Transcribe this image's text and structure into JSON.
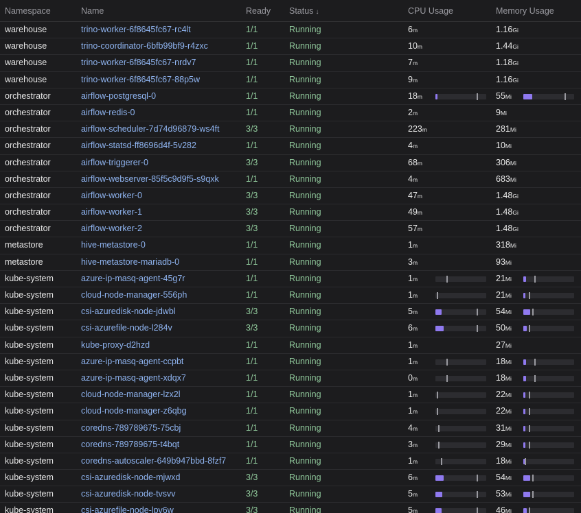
{
  "headers": {
    "namespace": "Namespace",
    "name": "Name",
    "ready": "Ready",
    "status": "Status",
    "status_sort": "↓",
    "cpu": "CPU Usage",
    "memory": "Memory Usage"
  },
  "colors": {
    "background": "#1c1c1e",
    "link": "#8fb4f0",
    "status_ok": "#8fc79a",
    "bar_fill": "#8f79ef",
    "bar_track": "#2c2c30"
  },
  "rows": [
    {
      "ns": "warehouse",
      "name": "trino-worker-6f8645fc67-rc4lt",
      "ready": "1/1",
      "status": "Running",
      "cpu": "6",
      "cpu_unit": "m",
      "mem": "1.16",
      "mem_unit": "Gi"
    },
    {
      "ns": "warehouse",
      "name": "trino-coordinator-6bfb99bf9-r4zxc",
      "ready": "1/1",
      "status": "Running",
      "cpu": "10",
      "cpu_unit": "m",
      "mem": "1.44",
      "mem_unit": "Gi"
    },
    {
      "ns": "warehouse",
      "name": "trino-worker-6f8645fc67-nrdv7",
      "ready": "1/1",
      "status": "Running",
      "cpu": "7",
      "cpu_unit": "m",
      "mem": "1.18",
      "mem_unit": "Gi"
    },
    {
      "ns": "warehouse",
      "name": "trino-worker-6f8645fc67-88p5w",
      "ready": "1/1",
      "status": "Running",
      "cpu": "9",
      "cpu_unit": "m",
      "mem": "1.16",
      "mem_unit": "Gi"
    },
    {
      "ns": "orchestrator",
      "name": "airflow-postgresql-0",
      "ready": "1/1",
      "status": "Running",
      "cpu": "18",
      "cpu_unit": "m",
      "mem": "55",
      "mem_unit": "Mi",
      "cpu_fill": 0.04,
      "cpu_limit": 0.81,
      "mem_fill": 0.17,
      "mem_limit": 0.81
    },
    {
      "ns": "orchestrator",
      "name": "airflow-redis-0",
      "ready": "1/1",
      "status": "Running",
      "cpu": "2",
      "cpu_unit": "m",
      "mem": "9",
      "mem_unit": "Mi"
    },
    {
      "ns": "orchestrator",
      "name": "airflow-scheduler-7d74d96879-ws4ft",
      "ready": "3/3",
      "status": "Running",
      "cpu": "223",
      "cpu_unit": "m",
      "mem": "281",
      "mem_unit": "Mi"
    },
    {
      "ns": "orchestrator",
      "name": "airflow-statsd-ff8696d4f-5v282",
      "ready": "1/1",
      "status": "Running",
      "cpu": "4",
      "cpu_unit": "m",
      "mem": "10",
      "mem_unit": "Mi"
    },
    {
      "ns": "orchestrator",
      "name": "airflow-triggerer-0",
      "ready": "3/3",
      "status": "Running",
      "cpu": "68",
      "cpu_unit": "m",
      "mem": "306",
      "mem_unit": "Mi"
    },
    {
      "ns": "orchestrator",
      "name": "airflow-webserver-85f5c9d9f5-s9qxk",
      "ready": "1/1",
      "status": "Running",
      "cpu": "4",
      "cpu_unit": "m",
      "mem": "683",
      "mem_unit": "Mi"
    },
    {
      "ns": "orchestrator",
      "name": "airflow-worker-0",
      "ready": "3/3",
      "status": "Running",
      "cpu": "47",
      "cpu_unit": "m",
      "mem": "1.48",
      "mem_unit": "Gi"
    },
    {
      "ns": "orchestrator",
      "name": "airflow-worker-1",
      "ready": "3/3",
      "status": "Running",
      "cpu": "49",
      "cpu_unit": "m",
      "mem": "1.48",
      "mem_unit": "Gi"
    },
    {
      "ns": "orchestrator",
      "name": "airflow-worker-2",
      "ready": "3/3",
      "status": "Running",
      "cpu": "57",
      "cpu_unit": "m",
      "mem": "1.48",
      "mem_unit": "Gi"
    },
    {
      "ns": "metastore",
      "name": "hive-metastore-0",
      "ready": "1/1",
      "status": "Running",
      "cpu": "1",
      "cpu_unit": "m",
      "mem": "318",
      "mem_unit": "Mi"
    },
    {
      "ns": "metastore",
      "name": "hive-metastore-mariadb-0",
      "ready": "1/1",
      "status": "Running",
      "cpu": "3",
      "cpu_unit": "m",
      "mem": "93",
      "mem_unit": "Mi"
    },
    {
      "ns": "kube-system",
      "name": "azure-ip-masq-agent-45g7r",
      "ready": "1/1",
      "status": "Running",
      "cpu": "1",
      "cpu_unit": "m",
      "mem": "21",
      "mem_unit": "Mi",
      "cpu_fill": 0.0,
      "cpu_limit": 0.22,
      "mem_fill": 0.05,
      "mem_limit": 0.22
    },
    {
      "ns": "kube-system",
      "name": "cloud-node-manager-556ph",
      "ready": "1/1",
      "status": "Running",
      "cpu": "1",
      "cpu_unit": "m",
      "mem": "21",
      "mem_unit": "Mi",
      "cpu_fill": 0.0,
      "cpu_limit": 0.03,
      "mem_fill": 0.03,
      "mem_limit": 0.11
    },
    {
      "ns": "kube-system",
      "name": "csi-azuredisk-node-jdwbl",
      "ready": "3/3",
      "status": "Running",
      "cpu": "5",
      "cpu_unit": "m",
      "mem": "54",
      "mem_unit": "Mi",
      "cpu_fill": 0.12,
      "cpu_limit": 0.81,
      "mem_fill": 0.14,
      "mem_limit": 0.17
    },
    {
      "ns": "kube-system",
      "name": "csi-azurefile-node-l284v",
      "ready": "3/3",
      "status": "Running",
      "cpu": "6",
      "cpu_unit": "m",
      "mem": "50",
      "mem_unit": "Mi",
      "cpu_fill": 0.16,
      "cpu_limit": 0.81,
      "mem_fill": 0.07,
      "mem_limit": 0.11
    },
    {
      "ns": "kube-system",
      "name": "kube-proxy-d2hzd",
      "ready": "1/1",
      "status": "Running",
      "cpu": "1",
      "cpu_unit": "m",
      "mem": "27",
      "mem_unit": "Mi"
    },
    {
      "ns": "kube-system",
      "name": "azure-ip-masq-agent-ccpbt",
      "ready": "1/1",
      "status": "Running",
      "cpu": "1",
      "cpu_unit": "m",
      "mem": "18",
      "mem_unit": "Mi",
      "cpu_fill": 0.0,
      "cpu_limit": 0.22,
      "mem_fill": 0.05,
      "mem_limit": 0.22
    },
    {
      "ns": "kube-system",
      "name": "azure-ip-masq-agent-xdqx7",
      "ready": "1/1",
      "status": "Running",
      "cpu": "0",
      "cpu_unit": "m",
      "mem": "18",
      "mem_unit": "Mi",
      "cpu_fill": 0.0,
      "cpu_limit": 0.22,
      "mem_fill": 0.05,
      "mem_limit": 0.22
    },
    {
      "ns": "kube-system",
      "name": "cloud-node-manager-lzx2l",
      "ready": "1/1",
      "status": "Running",
      "cpu": "1",
      "cpu_unit": "m",
      "mem": "22",
      "mem_unit": "Mi",
      "cpu_fill": 0.0,
      "cpu_limit": 0.03,
      "mem_fill": 0.03,
      "mem_limit": 0.11
    },
    {
      "ns": "kube-system",
      "name": "cloud-node-manager-z6qbg",
      "ready": "1/1",
      "status": "Running",
      "cpu": "1",
      "cpu_unit": "m",
      "mem": "22",
      "mem_unit": "Mi",
      "cpu_fill": 0.0,
      "cpu_limit": 0.03,
      "mem_fill": 0.03,
      "mem_limit": 0.11
    },
    {
      "ns": "kube-system",
      "name": "coredns-789789675-75cbj",
      "ready": "1/1",
      "status": "Running",
      "cpu": "4",
      "cpu_unit": "m",
      "mem": "31",
      "mem_unit": "Mi",
      "cpu_fill": 0.0,
      "cpu_limit": 0.05,
      "mem_fill": 0.04,
      "mem_limit": 0.11
    },
    {
      "ns": "kube-system",
      "name": "coredns-789789675-t4bqt",
      "ready": "1/1",
      "status": "Running",
      "cpu": "3",
      "cpu_unit": "m",
      "mem": "29",
      "mem_unit": "Mi",
      "cpu_fill": 0.0,
      "cpu_limit": 0.05,
      "mem_fill": 0.04,
      "mem_limit": 0.11
    },
    {
      "ns": "kube-system",
      "name": "coredns-autoscaler-649b947bbd-8fzf7",
      "ready": "1/1",
      "status": "Running",
      "cpu": "1",
      "cpu_unit": "m",
      "mem": "18",
      "mem_unit": "Mi",
      "cpu_fill": 0.0,
      "cpu_limit": 0.11,
      "mem_fill": 0.02,
      "mem_limit": 0.03
    },
    {
      "ns": "kube-system",
      "name": "csi-azuredisk-node-mjwxd",
      "ready": "3/3",
      "status": "Running",
      "cpu": "6",
      "cpu_unit": "m",
      "mem": "54",
      "mem_unit": "Mi",
      "cpu_fill": 0.16,
      "cpu_limit": 0.81,
      "mem_fill": 0.14,
      "mem_limit": 0.17
    },
    {
      "ns": "kube-system",
      "name": "csi-azuredisk-node-tvsvv",
      "ready": "3/3",
      "status": "Running",
      "cpu": "5",
      "cpu_unit": "m",
      "mem": "53",
      "mem_unit": "Mi",
      "cpu_fill": 0.14,
      "cpu_limit": 0.81,
      "mem_fill": 0.14,
      "mem_limit": 0.17
    },
    {
      "ns": "kube-system",
      "name": "csi-azurefile-node-lpv6w",
      "ready": "3/3",
      "status": "Running",
      "cpu": "5",
      "cpu_unit": "m",
      "mem": "46",
      "mem_unit": "Mi",
      "cpu_fill": 0.12,
      "cpu_limit": 0.81,
      "mem_fill": 0.07,
      "mem_limit": 0.11
    }
  ]
}
